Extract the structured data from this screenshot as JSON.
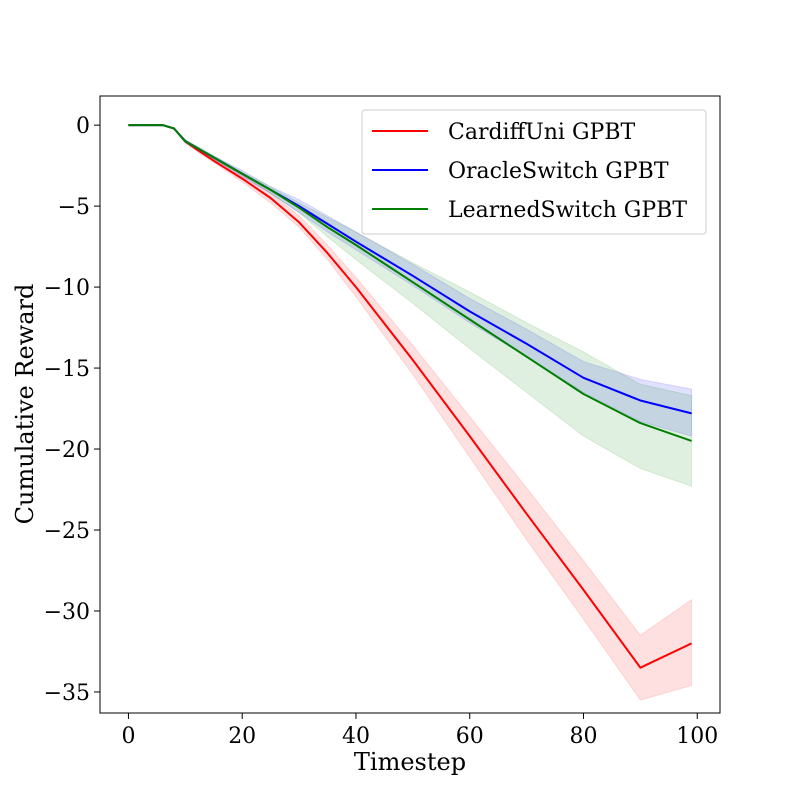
{
  "chart_data": {
    "type": "line",
    "xlabel": "Timestep",
    "ylabel": "Cumulative Reward",
    "xlim": [
      -5,
      104
    ],
    "ylim": [
      -36.3,
      1.8
    ],
    "xticks": [
      0,
      20,
      40,
      60,
      80,
      100
    ],
    "xtick_labels": [
      "0",
      "20",
      "40",
      "60",
      "80",
      "100"
    ],
    "yticks": [
      0,
      -5,
      -10,
      -15,
      -20,
      -25,
      -30,
      -35
    ],
    "ytick_labels": [
      "0",
      "−5",
      "−10",
      "−15",
      "−20",
      "−25",
      "−30",
      "−35"
    ],
    "grid": false,
    "legend_position": "top-right",
    "x": [
      0,
      6,
      8,
      10,
      12,
      15,
      20,
      25,
      30,
      35,
      40,
      50,
      60,
      70,
      80,
      90,
      99
    ],
    "series": [
      {
        "name": "CardiffUni GPBT",
        "color": "#ff0000",
        "values": [
          0,
          0,
          -0.2,
          -1.0,
          -1.5,
          -2.2,
          -3.3,
          -4.5,
          -6.0,
          -7.9,
          -10.0,
          -14.5,
          -19.2,
          -24.0,
          -28.7,
          -33.5,
          -32.0
        ],
        "lower": [
          0,
          0,
          -0.2,
          -1.1,
          -1.6,
          -2.3,
          -3.5,
          -4.8,
          -6.3,
          -8.3,
          -10.6,
          -15.4,
          -20.5,
          -25.6,
          -30.5,
          -35.5,
          -34.6
        ],
        "upper": [
          0,
          0,
          -0.2,
          -0.9,
          -1.4,
          -2.1,
          -3.1,
          -4.2,
          -5.6,
          -7.4,
          -9.4,
          -13.6,
          -18.0,
          -22.4,
          -26.9,
          -31.5,
          -29.3
        ]
      },
      {
        "name": "OracleSwitch GPBT",
        "color": "#0000ff",
        "values": [
          0,
          0,
          -0.2,
          -1.0,
          -1.4,
          -2.0,
          -3.0,
          -4.0,
          -5.0,
          -6.1,
          -7.2,
          -9.3,
          -11.5,
          -13.5,
          -15.6,
          -17.0,
          -17.8
        ],
        "lower": [
          0,
          0,
          -0.2,
          -1.1,
          -1.5,
          -2.1,
          -3.2,
          -4.2,
          -5.4,
          -6.6,
          -7.7,
          -9.9,
          -12.2,
          -14.3,
          -16.5,
          -18.3,
          -19.2
        ],
        "upper": [
          0,
          0,
          -0.2,
          -0.9,
          -1.3,
          -1.9,
          -2.8,
          -3.8,
          -4.6,
          -5.6,
          -6.6,
          -8.6,
          -10.7,
          -12.6,
          -14.6,
          -15.7,
          -16.3
        ]
      },
      {
        "name": "LearnedSwitch GPBT",
        "color": "#008000",
        "values": [
          0,
          0,
          -0.2,
          -1.0,
          -1.4,
          -2.0,
          -3.0,
          -4.0,
          -5.1,
          -6.3,
          -7.4,
          -9.7,
          -12.0,
          -14.3,
          -16.6,
          -18.4,
          -19.5
        ],
        "lower": [
          0,
          0,
          -0.2,
          -1.1,
          -1.5,
          -2.1,
          -3.1,
          -4.2,
          -5.4,
          -6.9,
          -8.3,
          -11.0,
          -13.8,
          -16.5,
          -19.2,
          -21.2,
          -22.3
        ],
        "upper": [
          0,
          0,
          -0.2,
          -0.9,
          -1.3,
          -1.9,
          -2.9,
          -3.8,
          -4.8,
          -5.7,
          -6.6,
          -8.5,
          -10.3,
          -12.2,
          -14.0,
          -16.0,
          -16.7
        ]
      }
    ]
  }
}
